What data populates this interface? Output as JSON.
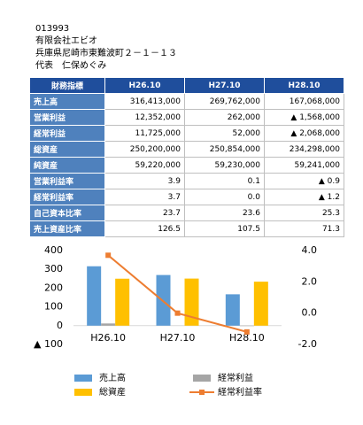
{
  "header": {
    "code": "013993",
    "company": "有限会社エビオ",
    "address": "兵庫県尼崎市東難波町２－１－１３",
    "representative": "代表　仁保めぐみ"
  },
  "table": {
    "header": [
      "財務指標",
      "H26.10",
      "H27.10",
      "H28.10"
    ],
    "rows": [
      [
        "売上高",
        "316,413,000",
        "269,762,000",
        "167,068,000"
      ],
      [
        "営業利益",
        "12,352,000",
        "262,000",
        "▲ 1,568,000"
      ],
      [
        "経常利益",
        "11,725,000",
        "52,000",
        "▲ 2,068,000"
      ],
      [
        "総資産",
        "250,200,000",
        "250,854,000",
        "234,298,000"
      ],
      [
        "純資産",
        "59,220,000",
        "59,230,000",
        "59,241,000"
      ],
      [
        "営業利益率",
        "3.9",
        "0.1",
        "▲ 0.9"
      ],
      [
        "経常利益率",
        "3.7",
        "0.0",
        "▲ 1.2"
      ],
      [
        "自己資本比率",
        "23.7",
        "23.6",
        "25.3"
      ],
      [
        "売上資産比率",
        "126.5",
        "107.5",
        "71.3"
      ]
    ]
  },
  "chart_data": {
    "type": "bar",
    "categories": [
      "H26.10",
      "H27.10",
      "H28.10"
    ],
    "series": [
      {
        "name": "売上高",
        "color": "#5b9bd5",
        "values": [
          316.4,
          269.8,
          167.1
        ]
      },
      {
        "name": "経常利益",
        "color": "#a5a5a5",
        "values": [
          11.7,
          0.1,
          -2.1
        ]
      },
      {
        "name": "総資産",
        "color": "#ffc000",
        "values": [
          250.2,
          250.9,
          234.3
        ]
      },
      {
        "name": "経常利益率",
        "color": "#ed7d31",
        "type": "line",
        "axis": "y2",
        "values": [
          3.7,
          0.0,
          -1.2
        ]
      }
    ],
    "ylim": [
      -100,
      400
    ],
    "yticks": [
      400,
      300,
      200,
      100,
      0,
      {
        "value": -100,
        "label": "▲ 100"
      }
    ],
    "y2lim": [
      -2,
      4
    ],
    "y2ticks": [
      {
        "value": 4,
        "label": "4.0"
      },
      {
        "value": 2,
        "label": "2.0"
      },
      {
        "value": 0,
        "label": "0.0"
      },
      {
        "value": -2,
        "label": "-2.0"
      }
    ]
  }
}
